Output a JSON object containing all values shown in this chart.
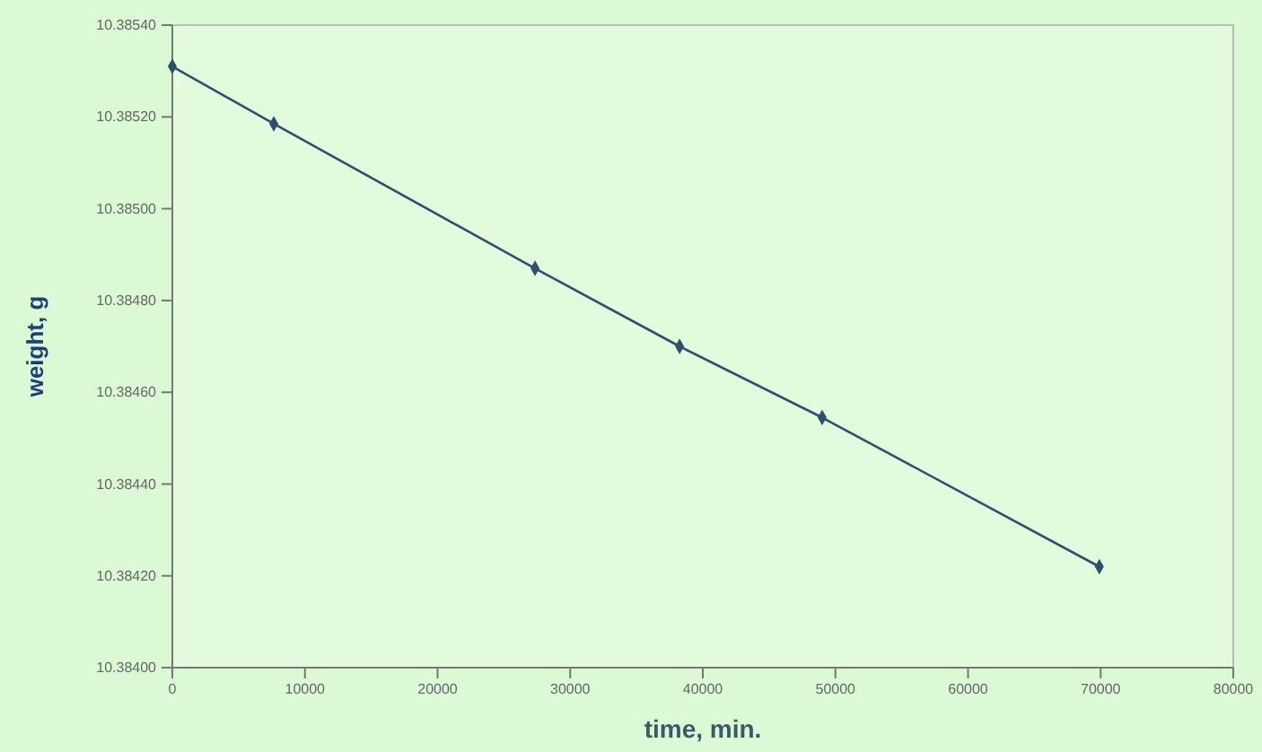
{
  "chart_data": {
    "type": "line",
    "xlabel": "time, min.",
    "ylabel": "weight, g",
    "x": [
      0,
      7650,
      27350,
      38250,
      49000,
      69900
    ],
    "series": [
      {
        "color": "#2f4f6f",
        "values": [
          10.38531,
          10.385185,
          10.38487,
          10.3847,
          10.384545,
          10.38422
        ]
      }
    ],
    "marker": "diamond",
    "line_style": "solid",
    "grid": false,
    "xlim": [
      0,
      80000
    ],
    "xticks": [
      0,
      10000,
      20000,
      30000,
      40000,
      50000,
      60000,
      70000,
      80000
    ],
    "ylim": [
      10.384,
      10.3854
    ],
    "yticks": [
      {
        "value": 10.384,
        "label": "10.38400"
      },
      {
        "value": 10.3842,
        "label": "10.38420"
      },
      {
        "value": 10.3844,
        "label": "10.38440"
      },
      {
        "value": 10.3846,
        "label": "10.38460"
      },
      {
        "value": 10.3848,
        "label": "10.38480"
      },
      {
        "value": 10.385,
        "label": "10.38500"
      },
      {
        "value": 10.3852,
        "label": "10.38520"
      },
      {
        "value": 10.3854,
        "label": "10.38540"
      }
    ]
  }
}
